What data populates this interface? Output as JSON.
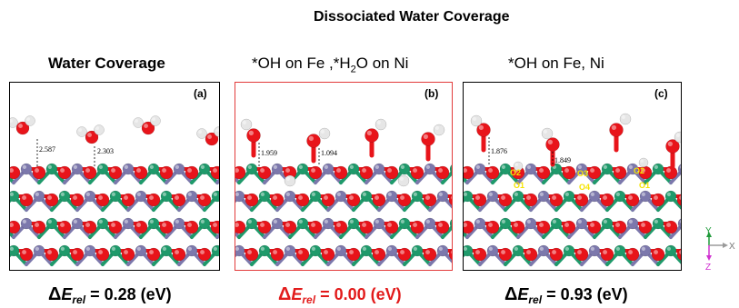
{
  "header": {
    "group_title": "Dissociated Water Coverage"
  },
  "panels": [
    {
      "title": "Water Coverage",
      "label": "(a)",
      "distances": [
        "2.587",
        "2.303"
      ],
      "energy_value": "= 0.28 (eV)"
    },
    {
      "title": "*OH on Fe ,*H2O on Ni",
      "label": "(b)",
      "distances": [
        "1.959",
        "1.094"
      ],
      "energy_value": "= 0.00 (eV)"
    },
    {
      "title": "*OH on Fe, Ni",
      "label": "(c)",
      "distances": [
        "1.876",
        "1.849"
      ],
      "energy_value": "= 0.93 (eV)",
      "oxygen_labels": [
        "O2",
        "O1",
        "O3",
        "O4",
        "O2",
        "O1"
      ]
    }
  ],
  "energy": {
    "delta": "Δ",
    "symbol": "E",
    "subscript": "rel"
  },
  "title_b_parts": {
    "prefix": "*OH on Fe ,*H",
    "sub": "2",
    "suffix": "O on Ni"
  },
  "axis": {
    "y": "Y",
    "x": "X",
    "z": "Z"
  },
  "colors": {
    "oxygen": "#e8141a",
    "hydrogen": "#e6e6e6",
    "fe": "#7c78ac",
    "ni": "#1f9a6b",
    "highlight": "#e21b1b",
    "o_label": "#f5e400"
  }
}
